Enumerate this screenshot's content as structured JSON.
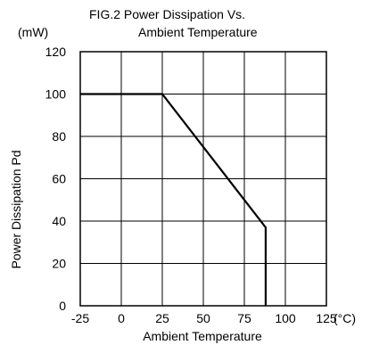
{
  "chart_data": {
    "type": "line",
    "title_line1": "FIG.2  Power Dissipation Vs.",
    "title_line2": "Ambient Temperature",
    "ylabel": "Power Dissipation Pd",
    "yunit": "(mW)",
    "xlabel": "Ambient Temperature",
    "xunit": "(°C)",
    "xlim": [
      -25,
      125
    ],
    "ylim": [
      0,
      120
    ],
    "xticks": [
      -25,
      0,
      25,
      50,
      75,
      100,
      125
    ],
    "yticks": [
      0,
      20,
      40,
      60,
      80,
      100,
      120
    ],
    "grid": true,
    "series": [
      {
        "x": [
          -25,
          25,
          88,
          88
        ],
        "y": [
          100,
          100,
          37,
          0
        ]
      }
    ]
  }
}
